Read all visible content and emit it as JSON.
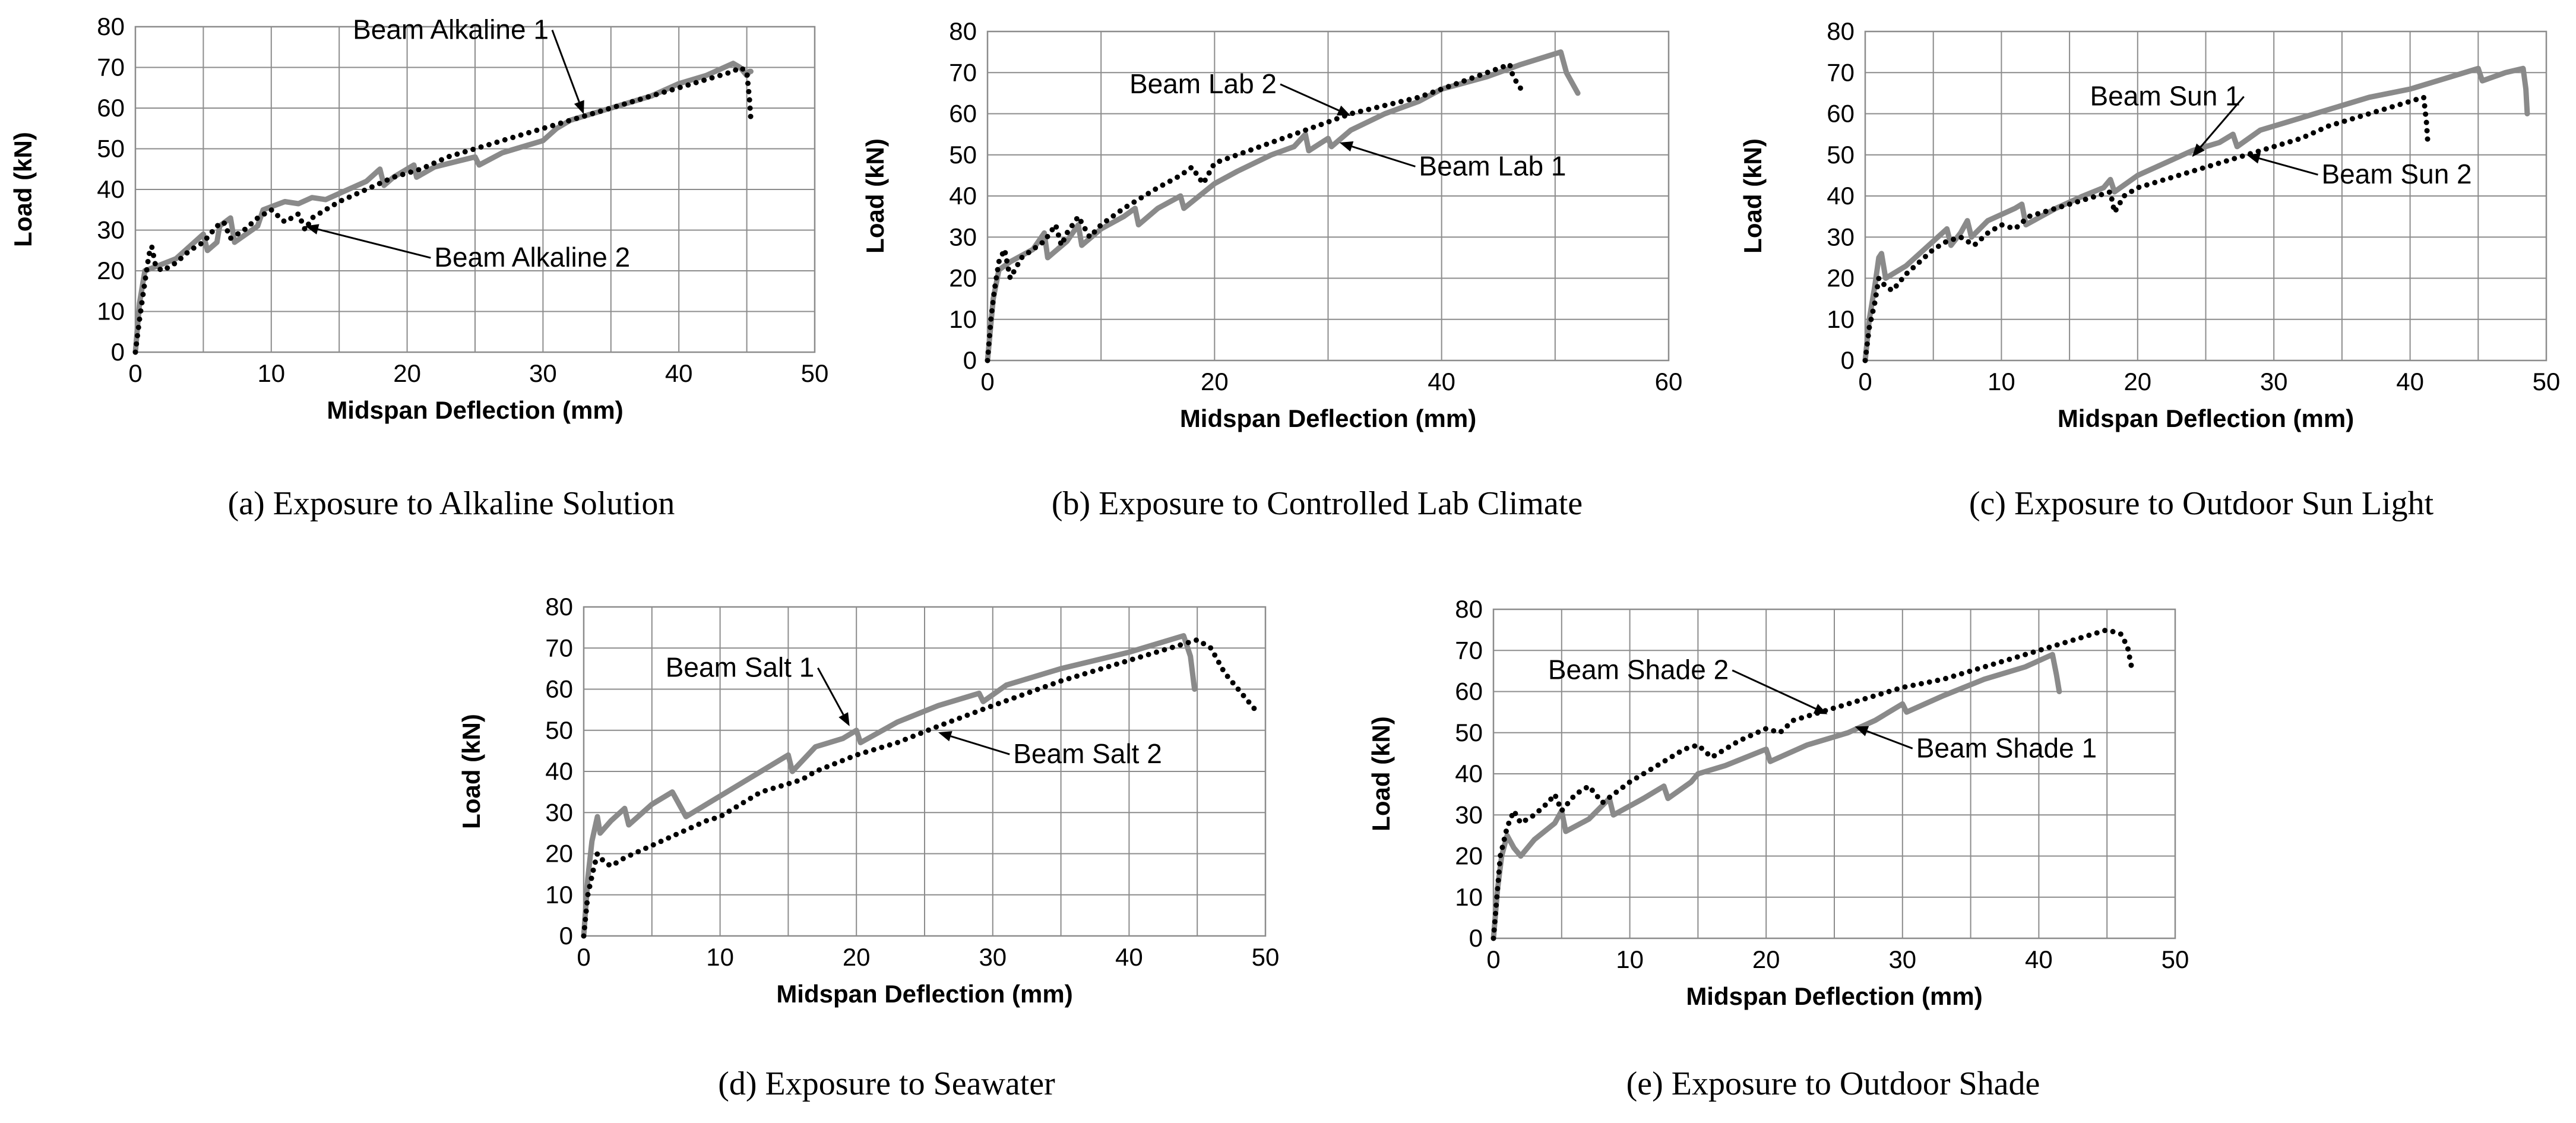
{
  "chart_data": [
    {
      "type": "line",
      "caption": "(a) Exposure to Alkaline Solution",
      "xlabel": "Midspan Deflection (mm)",
      "ylabel": "Load (kN)",
      "xlim": [
        0,
        50
      ],
      "ylim": [
        0,
        80
      ],
      "xticks": [
        "0",
        "10",
        "20",
        "30",
        "40",
        "50"
      ],
      "yticks": [
        "0",
        "10",
        "20",
        "30",
        "40",
        "50",
        "60",
        "70",
        "80"
      ],
      "grid": true,
      "series": [
        {
          "name": "Beam Alkaline 1",
          "style": "solid-grey",
          "x": [
            0,
            0.3,
            0.7,
            1.5,
            3,
            5,
            5.3,
            6,
            6.2,
            7,
            7.3,
            9,
            9.4,
            11,
            12,
            13,
            14,
            17,
            18,
            18.3,
            19,
            20.5,
            20.7,
            22,
            25,
            25.3,
            27,
            30,
            31,
            32,
            35,
            38,
            40,
            42,
            44,
            44.5,
            45,
            45.2,
            45.3
          ],
          "y": [
            0,
            12,
            20,
            21,
            23,
            29,
            25,
            27,
            31,
            33,
            27,
            31,
            35,
            37,
            36.5,
            38,
            37.5,
            42,
            45,
            41,
            43,
            46,
            43,
            45.5,
            48,
            46,
            49,
            52,
            55,
            57,
            60,
            63,
            66,
            68,
            71,
            70,
            68,
            69,
            69
          ]
        },
        {
          "name": "Beam Alkaline 2",
          "style": "dotted-black",
          "x": [
            0,
            0.3,
            0.6,
            1,
            1.2,
            1.5,
            2,
            3,
            4,
            5,
            5.5,
            6,
            6.5,
            7,
            8,
            9,
            10,
            11,
            12,
            12.5,
            13,
            15,
            17,
            19,
            21,
            23,
            26,
            28,
            30,
            32,
            35,
            38,
            40,
            42,
            44,
            44.5,
            45,
            45.2,
            45.3
          ],
          "y": [
            0,
            8,
            15,
            24,
            26,
            21,
            20,
            22,
            25,
            27,
            29,
            31,
            32,
            28,
            30,
            33,
            35,
            32,
            34,
            30,
            33,
            37,
            40,
            43,
            45,
            48,
            51,
            53,
            55,
            57,
            60,
            63,
            65,
            67,
            69,
            70,
            69,
            62,
            57
          ]
        }
      ],
      "annotations": [
        {
          "text": "Beam Alkaline 1",
          "x": 16,
          "y": 77,
          "arrow_to": [
            33,
            58.5
          ]
        },
        {
          "text": "Beam Alkaline 2",
          "x": 22,
          "y": 21,
          "arrow_to": [
            12.5,
            31
          ]
        }
      ]
    },
    {
      "type": "line",
      "caption": "(b) Exposure to Controlled Lab Climate",
      "xlabel": "Midspan Deflection (mm)",
      "ylabel": "Load (kN)",
      "xlim": [
        0,
        60
      ],
      "ylim": [
        0,
        80
      ],
      "xticks": [
        "0",
        "20",
        "40",
        "60"
      ],
      "yticks": [
        "0",
        "10",
        "20",
        "30",
        "40",
        "50",
        "60",
        "70",
        "80"
      ],
      "grid": true,
      "series": [
        {
          "name": "Beam Lab 1",
          "style": "solid-grey",
          "x": [
            0,
            0.5,
            1,
            2,
            4,
            5,
            5.3,
            7,
            8,
            8.3,
            10,
            12,
            13,
            13.3,
            15,
            17,
            17.3,
            20,
            22,
            25,
            27,
            28,
            28.3,
            30,
            30.3,
            32,
            35,
            38,
            40,
            44,
            47,
            50.5,
            51,
            52
          ],
          "y": [
            0,
            15,
            22,
            24,
            27,
            31,
            25,
            29,
            33,
            28,
            32,
            35,
            37,
            33,
            37,
            40,
            37,
            43,
            46,
            50,
            52,
            55,
            51,
            54,
            52,
            56,
            60,
            63,
            66,
            69,
            72,
            75,
            70,
            65
          ]
        },
        {
          "name": "Beam Lab 2",
          "style": "dotted-black",
          "x": [
            0,
            0.3,
            0.6,
            1,
            1.5,
            2,
            3,
            5,
            6,
            6.5,
            7,
            8,
            9,
            10,
            12,
            15,
            17,
            18,
            19,
            20,
            22,
            25,
            28,
            30,
            32,
            35,
            38,
            40,
            42,
            44,
            45,
            46,
            46.3,
            47
          ],
          "y": [
            0,
            10,
            17,
            24,
            27,
            20,
            25,
            29,
            33,
            28,
            31,
            35,
            30,
            33,
            37,
            42,
            45,
            47,
            43,
            48,
            50,
            53,
            56,
            58,
            60,
            62,
            64,
            66,
            68,
            70,
            71,
            72,
            69,
            66
          ]
        }
      ],
      "annotations": [
        {
          "text": "Beam Lab 2",
          "x": 12.5,
          "y": 65,
          "arrow_to": [
            32,
            59.5
          ]
        },
        {
          "text": "Beam Lab 1",
          "x": 38,
          "y": 45,
          "arrow_to": [
            31,
            53
          ]
        }
      ]
    },
    {
      "type": "line",
      "caption": "(c) Exposure to Outdoor Sun Light",
      "xlabel": "Midspan Deflection (mm)",
      "ylabel": "Load (kN)",
      "xlim": [
        0,
        50
      ],
      "ylim": [
        0,
        80
      ],
      "xticks": [
        "0",
        "10",
        "20",
        "30",
        "40",
        "50"
      ],
      "yticks": [
        "0",
        "10",
        "20",
        "30",
        "40",
        "50",
        "60",
        "70",
        "80"
      ],
      "grid": true,
      "series": [
        {
          "name": "Beam Sun 1",
          "style": "solid-grey",
          "x": [
            0,
            0.3,
            0.7,
            1,
            1.2,
            1.5,
            3,
            5,
            6,
            6.3,
            7,
            7.5,
            7.8,
            9,
            11,
            11.5,
            11.8,
            14,
            16,
            17.5,
            18,
            18.3,
            20,
            22,
            24,
            26,
            27,
            27.3,
            29,
            31,
            34,
            37,
            40,
            43,
            45,
            45.3,
            47,
            48.3,
            48.5,
            48.6
          ],
          "y": [
            0,
            10,
            18,
            25,
            26,
            20,
            23,
            29,
            32,
            28,
            31,
            34,
            30,
            34,
            37,
            38,
            33,
            37,
            40,
            42,
            44,
            41,
            45,
            48,
            51,
            53,
            55,
            52,
            56,
            58,
            61,
            64,
            66,
            69,
            71,
            68,
            70,
            71,
            66,
            60
          ]
        },
        {
          "name": "Beam Sun 2",
          "style": "dotted-black",
          "x": [
            0,
            0.3,
            0.7,
            1,
            1.5,
            2,
            3,
            4,
            5,
            6,
            7,
            8,
            9,
            10,
            11,
            12,
            14,
            16,
            18,
            18.3,
            19,
            20,
            22,
            25,
            28,
            30,
            32,
            34,
            36,
            38,
            40,
            41,
            41.2,
            41.3
          ],
          "y": [
            0,
            8,
            14,
            20,
            18,
            17,
            21,
            24,
            27,
            29,
            30,
            28,
            31,
            33,
            32,
            35,
            37,
            39,
            41,
            36,
            40,
            42,
            44,
            47,
            50,
            52,
            54,
            57,
            59,
            61,
            63,
            64,
            58,
            53
          ]
        }
      ],
      "annotations": [
        {
          "text": "Beam Sun 1",
          "x": 16.5,
          "y": 62,
          "arrow_to": [
            24,
            49.5
          ]
        },
        {
          "text": "Beam Sun 2",
          "x": 33.5,
          "y": 43,
          "arrow_to": [
            28,
            50
          ]
        }
      ]
    },
    {
      "type": "line",
      "caption": "(d) Exposure to Seawater",
      "xlabel": "Midspan Deflection (mm)",
      "ylabel": "Load (kN)",
      "xlim": [
        0,
        50
      ],
      "ylim": [
        0,
        80
      ],
      "xticks": [
        "0",
        "10",
        "20",
        "30",
        "40",
        "50"
      ],
      "yticks": [
        "0",
        "10",
        "20",
        "30",
        "40",
        "50",
        "60",
        "70",
        "80"
      ],
      "grid": true,
      "series": [
        {
          "name": "Beam Salt 1",
          "style": "solid-grey",
          "x": [
            0,
            0.3,
            0.6,
            1,
            1.2,
            2,
            3,
            3.3,
            5,
            6.5,
            7.5,
            9,
            12,
            15,
            15.3,
            17,
            19,
            20,
            20.3,
            23,
            26,
            29,
            29.3,
            31,
            35,
            40,
            44,
            44.5,
            44.8
          ],
          "y": [
            0,
            14,
            23,
            29,
            25,
            28,
            31,
            27,
            32,
            35,
            29,
            32,
            38,
            44,
            40,
            46,
            48,
            50,
            47,
            52,
            56,
            59,
            57,
            61,
            65,
            69,
            73,
            68,
            60
          ]
        },
        {
          "name": "Beam Salt 2",
          "style": "dotted-black",
          "x": [
            0,
            0.3,
            0.7,
            1,
            1.5,
            2,
            3,
            5,
            7,
            9,
            10,
            11,
            13,
            15,
            16,
            17,
            20,
            23,
            26,
            30,
            35,
            40,
            43,
            45,
            46,
            47,
            48,
            49.5
          ],
          "y": [
            0,
            10,
            16,
            20,
            18,
            17,
            19,
            22,
            25,
            28,
            29,
            31,
            35,
            37,
            38,
            40,
            44,
            47,
            51,
            56,
            62,
            67,
            70,
            72,
            70,
            64,
            60,
            54
          ]
        }
      ],
      "annotations": [
        {
          "text": "Beam Salt 1",
          "x": 6,
          "y": 63,
          "arrow_to": [
            19.5,
            51
          ]
        },
        {
          "text": "Beam Salt 2",
          "x": 31.5,
          "y": 42,
          "arrow_to": [
            26,
            49.5
          ]
        }
      ]
    },
    {
      "type": "line",
      "caption": "(e) Exposure to Outdoor Shade",
      "xlabel": "Midspan Deflection (mm)",
      "ylabel": "Load (kN)",
      "xlim": [
        0,
        50
      ],
      "ylim": [
        0,
        80
      ],
      "xticks": [
        "0",
        "10",
        "20",
        "30",
        "40",
        "50"
      ],
      "yticks": [
        "0",
        "10",
        "20",
        "30",
        "40",
        "50",
        "60",
        "70",
        "80"
      ],
      "grid": true,
      "series": [
        {
          "name": "Beam Shade 1",
          "style": "solid-grey",
          "x": [
            0,
            0.3,
            0.6,
            1,
            1.5,
            2,
            3,
            4.5,
            5,
            5.3,
            7,
            8.5,
            8.8,
            11,
            12.5,
            12.8,
            14.5,
            15,
            17,
            20,
            20.3,
            23,
            26,
            28,
            30,
            30.3,
            33,
            36,
            39,
            41,
            41.3,
            41.5
          ],
          "y": [
            0,
            12,
            20,
            25,
            22,
            20,
            24,
            28,
            31,
            26,
            29,
            34,
            30,
            34,
            37,
            34,
            38,
            40,
            42,
            46,
            43,
            47,
            50,
            53,
            57,
            55,
            59,
            63,
            66,
            69,
            64,
            60
          ]
        },
        {
          "name": "Beam Shade 2",
          "style": "dotted-black",
          "x": [
            0,
            0.3,
            0.5,
            1,
            1.5,
            2,
            3,
            4,
            4.5,
            5,
            6,
            7,
            8,
            10,
            12,
            14,
            15,
            16,
            18,
            20,
            21,
            22,
            24,
            26,
            28,
            30,
            33,
            36,
            40,
            43,
            45,
            46,
            46.5,
            46.8
          ],
          "y": [
            0,
            12,
            20,
            27,
            31,
            28,
            30,
            33,
            35,
            31,
            35,
            37,
            33,
            38,
            42,
            46,
            47,
            44,
            48,
            51,
            50,
            53,
            55,
            57,
            59,
            61,
            63,
            66,
            70,
            73,
            75,
            74,
            71,
            66
          ]
        }
      ],
      "annotations": [
        {
          "text": "Beam Shade 2",
          "x": 4,
          "y": 63,
          "arrow_to": [
            24.5,
            54.5
          ]
        },
        {
          "text": "Beam Shade 1",
          "x": 31,
          "y": 44,
          "arrow_to": [
            26.5,
            51.5
          ]
        }
      ]
    }
  ]
}
